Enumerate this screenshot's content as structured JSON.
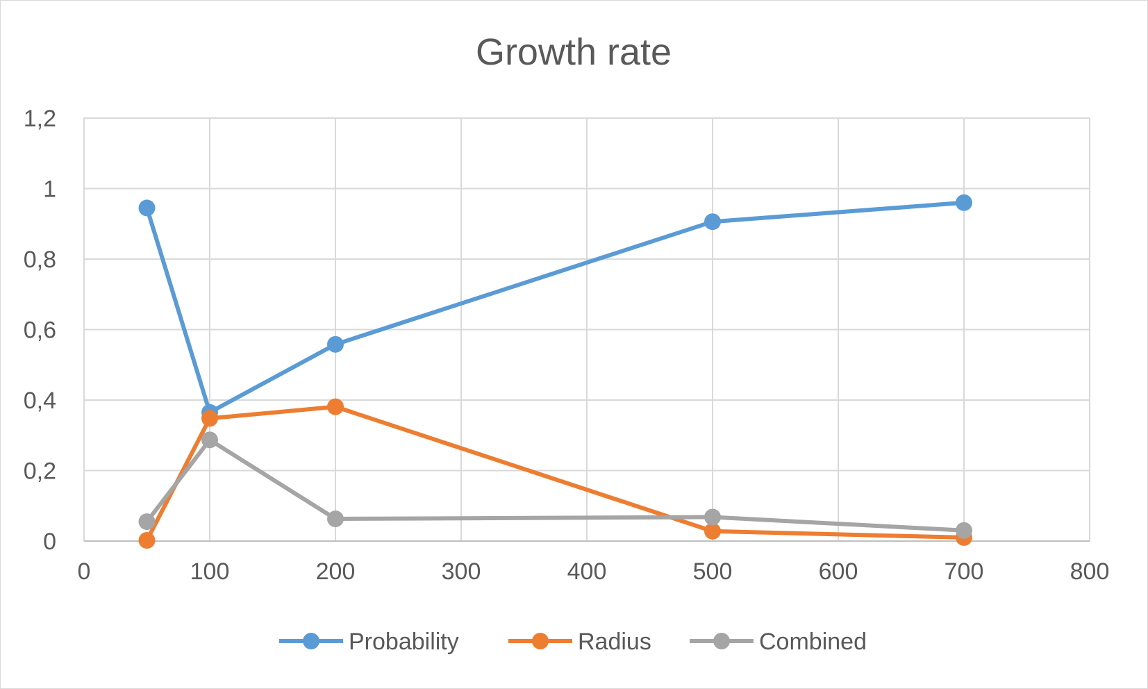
{
  "chart_data": {
    "type": "scatter",
    "title": "Growth rate",
    "xlabel": "",
    "ylabel": "",
    "xlim": [
      0,
      800
    ],
    "ylim": [
      0,
      1.2
    ],
    "x_ticks": [
      "0",
      "100",
      "200",
      "300",
      "400",
      "500",
      "600",
      "700",
      "800"
    ],
    "y_ticks": [
      "0",
      "0,2",
      "0,4",
      "0,6",
      "0,8",
      "1",
      "1,2"
    ],
    "grid": true,
    "legend_position": "bottom",
    "x": [
      50,
      100,
      200,
      500,
      700
    ],
    "series": [
      {
        "name": "Probability",
        "color": "#5b9bd5",
        "values": [
          0.945,
          0.365,
          0.558,
          0.906,
          0.96
        ]
      },
      {
        "name": "Radius",
        "color": "#ed7d31",
        "values": [
          0.002,
          0.348,
          0.381,
          0.028,
          0.01
        ]
      },
      {
        "name": "Combined",
        "color": "#a5a5a5",
        "values": [
          0.055,
          0.287,
          0.063,
          0.068,
          0.03
        ]
      }
    ]
  }
}
